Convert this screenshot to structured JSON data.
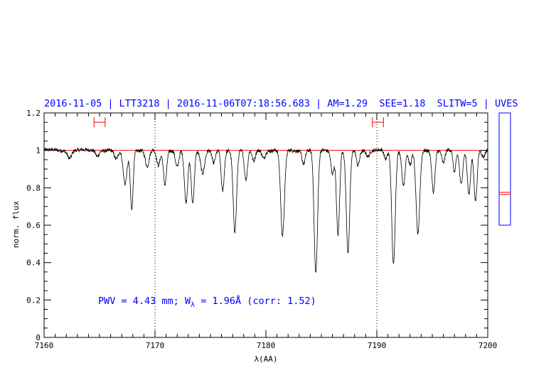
{
  "header": {
    "title": "2016-11-05 | LTT3218 | 2016-11-06T07:18:56.683 | AM=1.29  SEE=1.18  SLITW=5 | UVES"
  },
  "annotation": {
    "prefix": "PWV = 4.43 mm; W",
    "subscript": "λ",
    "suffix": " = 1.96Å (corr: 1.52)"
  },
  "colors": {
    "title": "#0000ff",
    "reference_line": "#ff0000",
    "spectrum": "#000000",
    "indicator_box": "#0000ff"
  },
  "chart_data": {
    "type": "line",
    "xlabel": "λ(AA)",
    "ylabel": "norm. flux",
    "xlim": [
      7160,
      7200
    ],
    "ylim": [
      0,
      1.2
    ],
    "xticks": [
      7160,
      7170,
      7180,
      7190,
      7200
    ],
    "xtick_labels": [
      "7160",
      "7170",
      "7180",
      "7190",
      "7200"
    ],
    "yticks": [
      0,
      0.2,
      0.4,
      0.6,
      0.8,
      1,
      1.2
    ],
    "ytick_labels": [
      "0",
      "0.2",
      "0.4",
      "0.6",
      "0.8",
      "1",
      "1.2"
    ],
    "grid": false,
    "legend": "none",
    "reference_level": 1.0,
    "vertical_markers": [
      7170,
      7190
    ],
    "continuum_windows": [
      {
        "x": [
          7164.5,
          7165.5
        ],
        "y": 1.15
      },
      {
        "x": [
          7189.6,
          7190.6
        ],
        "y": 1.15
      }
    ],
    "absorption_lines": [
      {
        "x": 7162.3,
        "depth": 0.04,
        "width": 0.25
      },
      {
        "x": 7164.8,
        "depth": 0.03,
        "width": 0.2
      },
      {
        "x": 7166.5,
        "depth": 0.05,
        "width": 0.25
      },
      {
        "x": 7167.3,
        "depth": 0.18,
        "width": 0.25
      },
      {
        "x": 7167.9,
        "depth": 0.31,
        "width": 0.18
      },
      {
        "x": 7169.3,
        "depth": 0.09,
        "width": 0.25
      },
      {
        "x": 7170.3,
        "depth": 0.08,
        "width": 0.22
      },
      {
        "x": 7170.9,
        "depth": 0.18,
        "width": 0.2
      },
      {
        "x": 7172.0,
        "depth": 0.09,
        "width": 0.22
      },
      {
        "x": 7172.8,
        "depth": 0.28,
        "width": 0.22
      },
      {
        "x": 7173.4,
        "depth": 0.28,
        "width": 0.2
      },
      {
        "x": 7174.3,
        "depth": 0.12,
        "width": 0.25
      },
      {
        "x": 7175.3,
        "depth": 0.07,
        "width": 0.22
      },
      {
        "x": 7176.1,
        "depth": 0.22,
        "width": 0.2
      },
      {
        "x": 7177.2,
        "depth": 0.43,
        "width": 0.22
      },
      {
        "x": 7178.2,
        "depth": 0.16,
        "width": 0.2
      },
      {
        "x": 7178.9,
        "depth": 0.06,
        "width": 0.2
      },
      {
        "x": 7179.8,
        "depth": 0.04,
        "width": 0.2
      },
      {
        "x": 7181.5,
        "depth": 0.46,
        "width": 0.24
      },
      {
        "x": 7183.4,
        "depth": 0.07,
        "width": 0.2
      },
      {
        "x": 7184.5,
        "depth": 0.66,
        "width": 0.22
      },
      {
        "x": 7186.0,
        "depth": 0.12,
        "width": 0.2
      },
      {
        "x": 7186.5,
        "depth": 0.45,
        "width": 0.2
      },
      {
        "x": 7187.4,
        "depth": 0.55,
        "width": 0.22
      },
      {
        "x": 7188.3,
        "depth": 0.08,
        "width": 0.2
      },
      {
        "x": 7189.2,
        "depth": 0.03,
        "width": 0.2
      },
      {
        "x": 7190.8,
        "depth": 0.05,
        "width": 0.2
      },
      {
        "x": 7191.5,
        "depth": 0.61,
        "width": 0.22
      },
      {
        "x": 7192.4,
        "depth": 0.19,
        "width": 0.2
      },
      {
        "x": 7193.0,
        "depth": 0.08,
        "width": 0.2
      },
      {
        "x": 7193.7,
        "depth": 0.45,
        "width": 0.24
      },
      {
        "x": 7195.1,
        "depth": 0.22,
        "width": 0.2
      },
      {
        "x": 7196.0,
        "depth": 0.07,
        "width": 0.2
      },
      {
        "x": 7197.0,
        "depth": 0.12,
        "width": 0.18
      },
      {
        "x": 7197.6,
        "depth": 0.18,
        "width": 0.2
      },
      {
        "x": 7198.3,
        "depth": 0.23,
        "width": 0.2
      },
      {
        "x": 7198.9,
        "depth": 0.27,
        "width": 0.2
      },
      {
        "x": 7199.6,
        "depth": 0.04,
        "width": 0.2
      }
    ],
    "side_indicator": {
      "ylim": [
        0.6,
        1.2
      ],
      "marker": 0.77
    }
  }
}
